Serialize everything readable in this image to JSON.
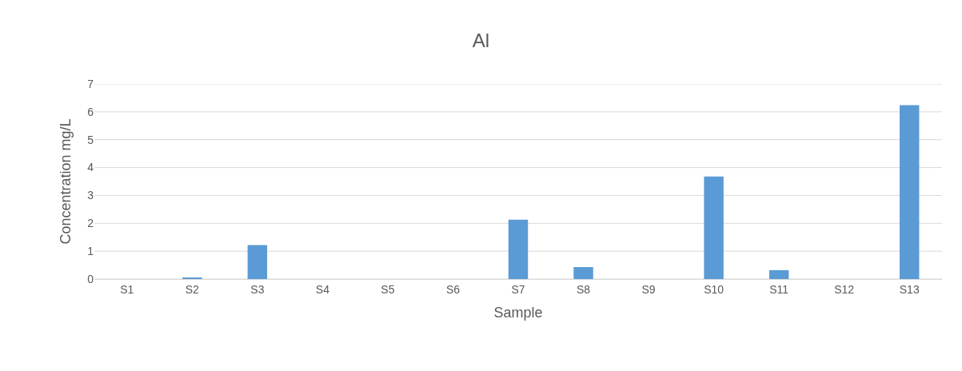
{
  "chart_data": {
    "type": "bar",
    "title": "Al",
    "xlabel": "Sample",
    "ylabel": "Concentration mg/L",
    "categories": [
      "S1",
      "S2",
      "S3",
      "S4",
      "S5",
      "S6",
      "S7",
      "S8",
      "S9",
      "S10",
      "S11",
      "S12",
      "S13"
    ],
    "values": [
      0,
      0.03,
      1.22,
      0,
      0,
      0,
      2.13,
      0.43,
      0,
      3.68,
      0.32,
      0,
      6.24
    ],
    "color": "#5b9bd5",
    "ylim": [
      0,
      7
    ],
    "yticks": [
      0,
      1,
      2,
      3,
      4,
      5,
      6,
      7
    ],
    "grid": "y"
  }
}
